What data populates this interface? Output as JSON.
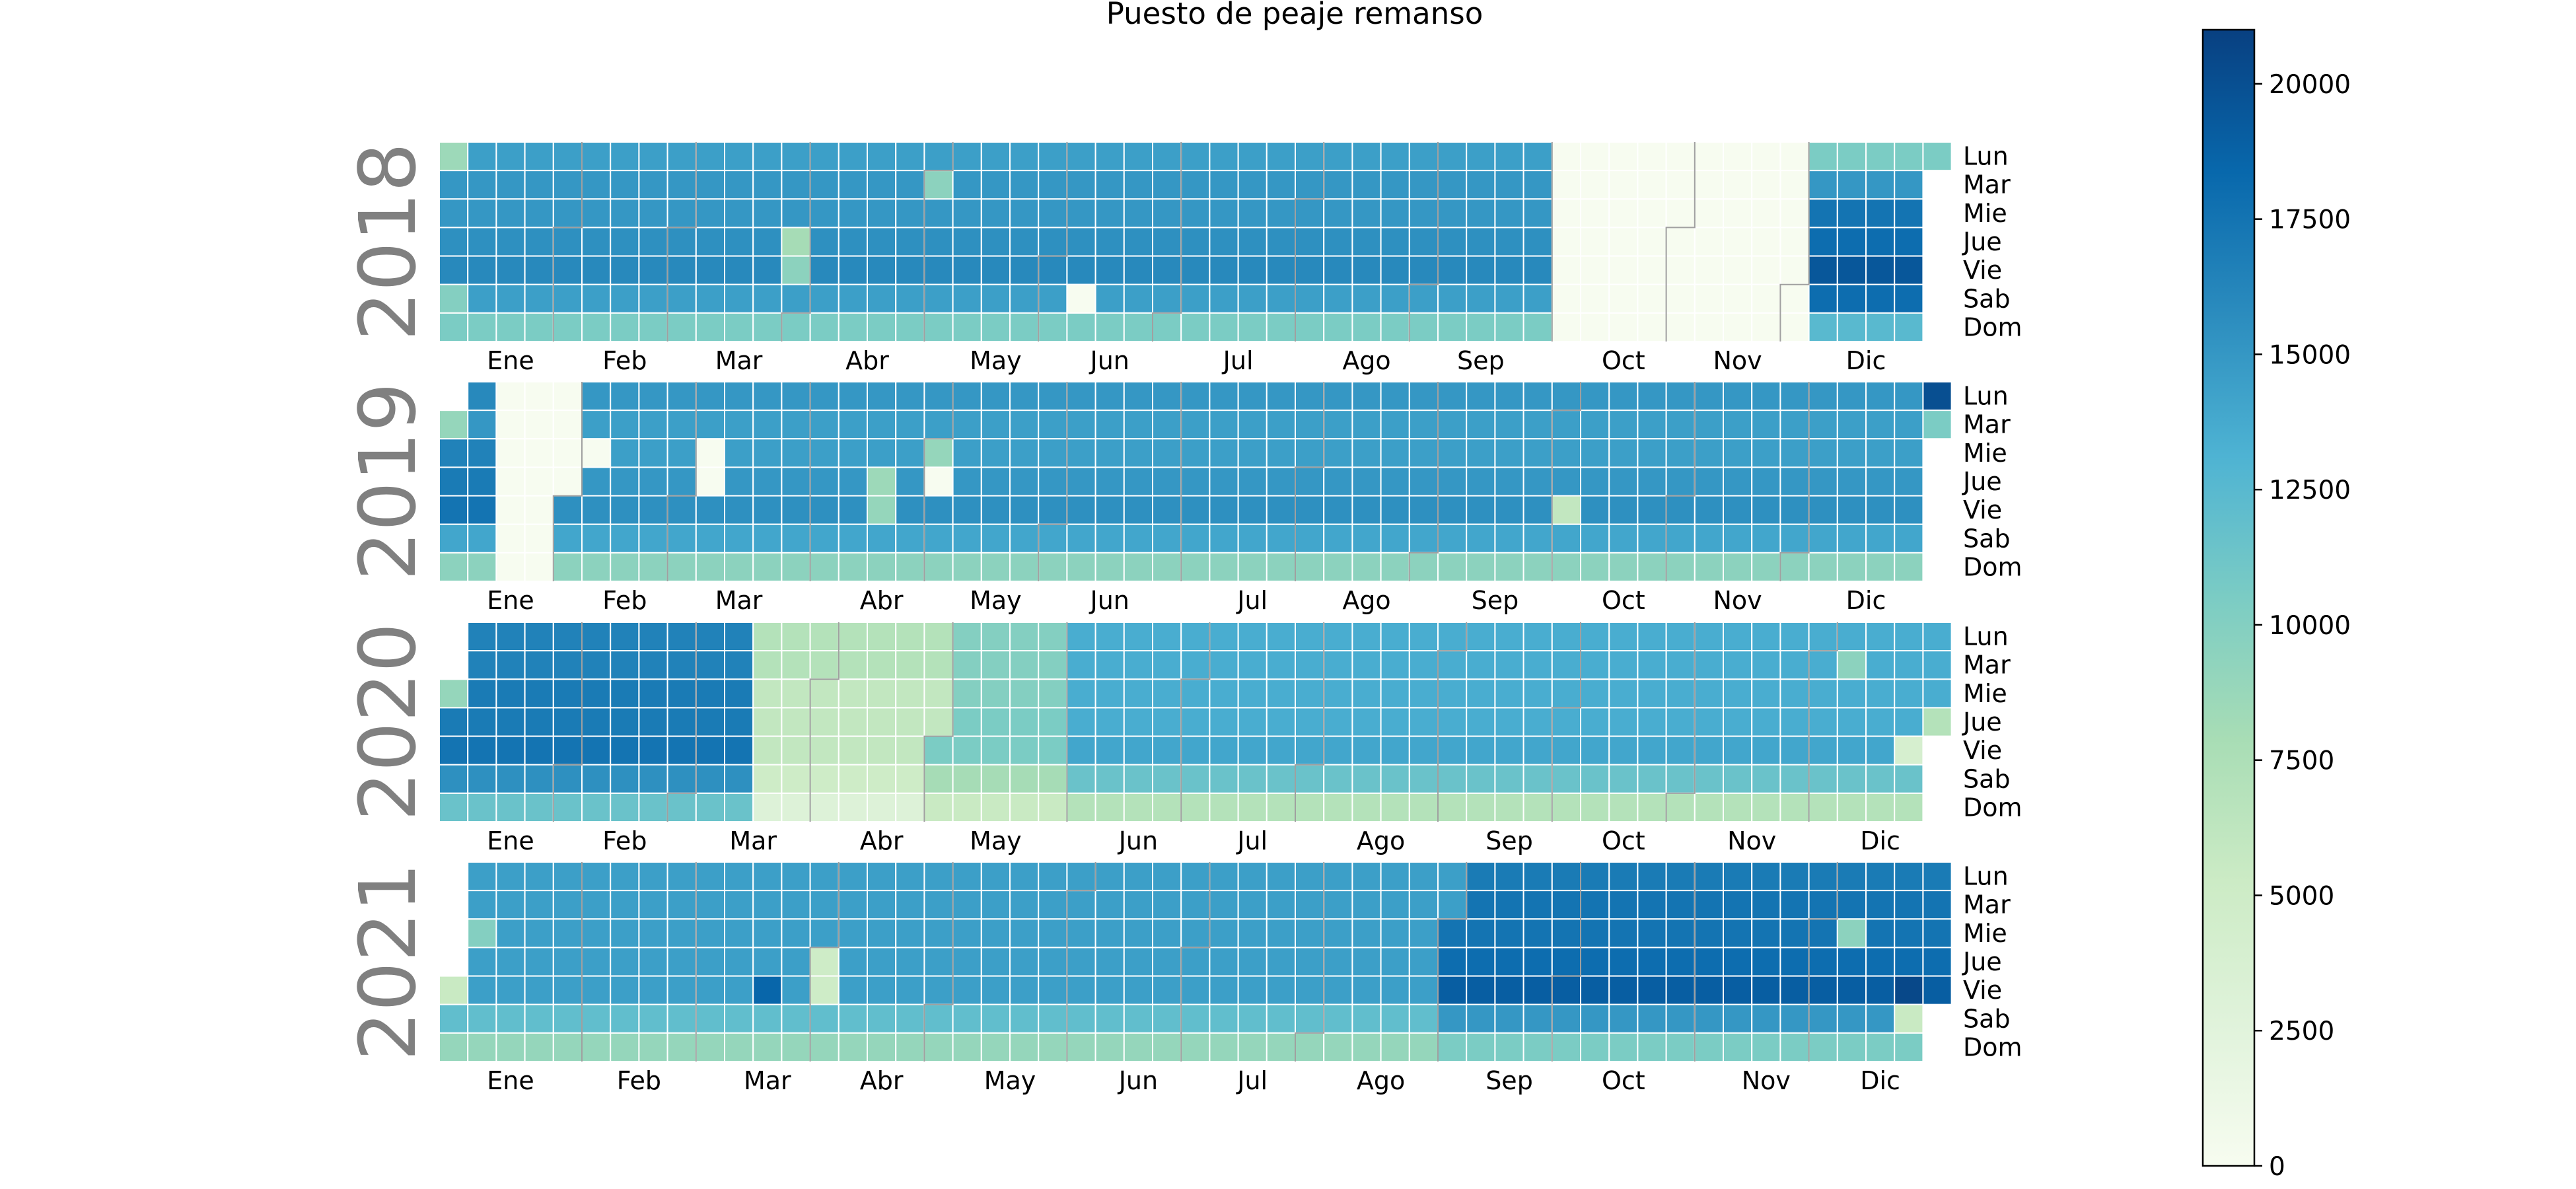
{
  "chart_data": {
    "type": "heatmap",
    "title": "Puesto de peaje remanso",
    "colormap": "GnBu",
    "colormap_stops": [
      "#f7fcf0",
      "#e0f3db",
      "#ccebc5",
      "#a8ddb5",
      "#7bccc4",
      "#4eb3d3",
      "#2b8cbe",
      "#0868ac",
      "#084081"
    ],
    "weekday_labels": [
      "Lun",
      "Mar",
      "Mie",
      "Jue",
      "Vie",
      "Sab",
      "Dom"
    ],
    "month_labels": [
      "Ene",
      "Feb",
      "Mar",
      "Abr",
      "May",
      "Jun",
      "Jul",
      "Ago",
      "Sep",
      "Oct",
      "Nov",
      "Dic"
    ],
    "colorbar": {
      "min": 0,
      "max": 21000,
      "ticks": [
        0,
        2500,
        5000,
        7500,
        10000,
        12500,
        15000,
        17500,
        20000
      ],
      "tick_labels": [
        "0",
        "2500",
        "5000",
        "7500",
        "10000",
        "12500",
        "15000",
        "17500",
        "20000"
      ]
    },
    "grid": false,
    "years": [
      {
        "year": "2018",
        "weekly_levels_note": "estimated typical daily traffic per day of week (Lun..Dom), grouped by period",
        "periods": [
          {
            "from": "2018-01-01",
            "to": "2018-09-30",
            "values": [
              14500,
              15000,
              15000,
              15500,
              16000,
              14500,
              10500
            ]
          },
          {
            "from": "2018-10-01",
            "to": "2018-12-02",
            "values": [
              0,
              0,
              0,
              0,
              0,
              0,
              0
            ]
          },
          {
            "from": "2018-12-03",
            "to": "2018-12-31",
            "values": [
              10500,
              15000,
              17500,
              18000,
              19500,
              18000,
              12500
            ]
          }
        ],
        "daily_overrides": [
          {
            "date": "2018-01-01",
            "value": 8500
          },
          {
            "date": "2018-01-06",
            "value": 10000
          },
          {
            "date": "2018-03-29",
            "value": 8000
          },
          {
            "date": "2018-03-30",
            "value": 9500
          },
          {
            "date": "2018-06-09",
            "value": 0
          },
          {
            "date": "2018-05-01",
            "value": 9500
          }
        ]
      },
      {
        "year": "2019",
        "periods": [
          {
            "from": "2019-01-01",
            "to": "2019-01-13",
            "values": [
              16000,
              15000,
              16500,
              17000,
              17500,
              14000,
              9500
            ]
          },
          {
            "from": "2019-01-14",
            "to": "2019-01-31",
            "values": [
              0,
              0,
              0,
              0,
              0,
              0,
              0
            ]
          },
          {
            "from": "2019-02-01",
            "to": "2019-12-31",
            "values": [
              15000,
              14500,
              14500,
              15000,
              15500,
              14000,
              9500
            ]
          }
        ],
        "daily_overrides": [
          {
            "date": "2019-01-01",
            "value": 9000
          },
          {
            "date": "2019-02-06",
            "value": 0
          },
          {
            "date": "2019-03-06",
            "value": 0
          },
          {
            "date": "2019-03-07",
            "value": 0
          },
          {
            "date": "2019-04-18",
            "value": 8500
          },
          {
            "date": "2019-04-19",
            "value": 9000
          },
          {
            "date": "2019-05-01",
            "value": 9000
          },
          {
            "date": "2019-05-02",
            "value": 0
          },
          {
            "date": "2019-10-04",
            "value": 6000
          },
          {
            "date": "2019-12-30",
            "value": 20000
          },
          {
            "date": "2019-12-31",
            "value": 10500
          }
        ]
      },
      {
        "year": "2020",
        "periods": [
          {
            "from": "2020-01-01",
            "to": "2020-03-15",
            "values": [
              16500,
              16500,
              17000,
              17000,
              17500,
              15500,
              11500
            ]
          },
          {
            "from": "2020-03-16",
            "to": "2020-04-30",
            "values": [
              7000,
              7000,
              6000,
              6000,
              6000,
              5000,
              3000
            ]
          },
          {
            "from": "2020-05-01",
            "to": "2020-05-31",
            "values": [
              10000,
              10000,
              10000,
              10500,
              10500,
              8000,
              5500
            ]
          },
          {
            "from": "2020-06-01",
            "to": "2020-12-31",
            "values": [
              13500,
              13500,
              13500,
              13500,
              14000,
              11500,
              7000
            ]
          }
        ],
        "daily_overrides": [
          {
            "date": "2020-01-01",
            "value": 9000
          },
          {
            "date": "2020-12-08",
            "value": 9500
          },
          {
            "date": "2020-12-25",
            "value": 4000
          },
          {
            "date": "2020-12-31",
            "value": 7000
          }
        ]
      },
      {
        "year": "2021",
        "periods": [
          {
            "from": "2021-01-01",
            "to": "2021-08-31",
            "values": [
              14500,
              14500,
              14500,
              14500,
              14500,
              12000,
              9000
            ]
          },
          {
            "from": "2021-09-01",
            "to": "2021-12-31",
            "values": [
              17000,
              17500,
              17500,
              18000,
              19000,
              15000,
              10500
            ]
          }
        ],
        "daily_overrides": [
          {
            "date": "2021-01-01",
            "value": 5500
          },
          {
            "date": "2021-01-06",
            "value": 10000
          },
          {
            "date": "2021-03-19",
            "value": 18500
          },
          {
            "date": "2021-04-01",
            "value": 5000
          },
          {
            "date": "2021-04-02",
            "value": 5000
          },
          {
            "date": "2021-12-08",
            "value": 9500
          },
          {
            "date": "2021-12-24",
            "value": 20500
          },
          {
            "date": "2021-12-25",
            "value": 5500
          }
        ]
      }
    ]
  }
}
